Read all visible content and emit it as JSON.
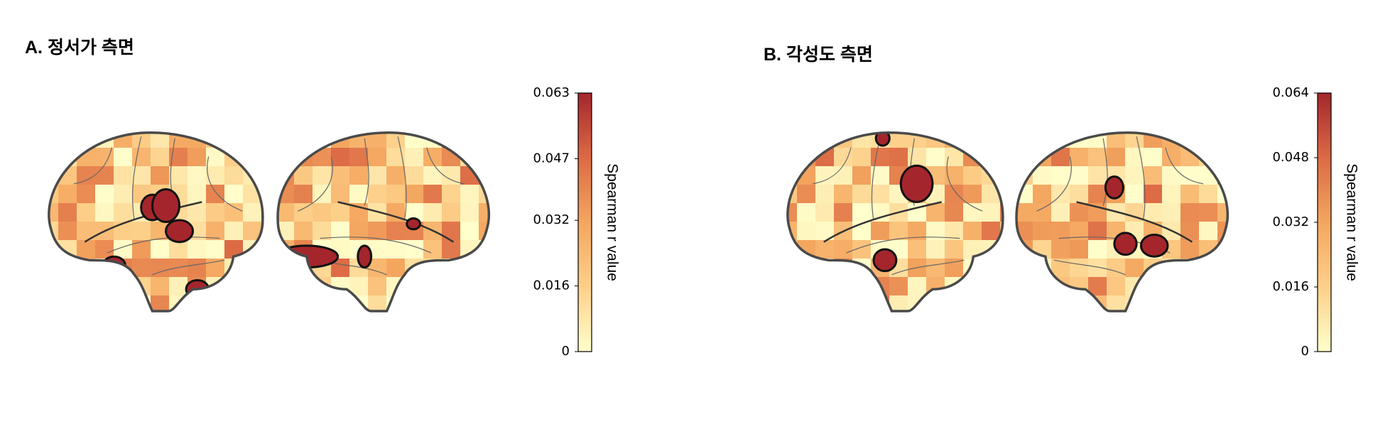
{
  "panels": [
    {
      "title": "A. 정서가 측면",
      "colorbar": {
        "label": "Spearman r value",
        "lim": [
          0,
          0.063
        ],
        "ticks": [
          0,
          0.016,
          0.032,
          0.047,
          0.063
        ],
        "colors": [
          "#ffffcc",
          "#fdd08a",
          "#f4a65f",
          "#dc6a45",
          "#a4262c"
        ]
      }
    },
    {
      "title": "B. 각성도 측면",
      "colorbar": {
        "label": "Spearman r value",
        "lim": [
          0,
          0.064
        ],
        "ticks": [
          0,
          0.016,
          0.032,
          0.048,
          0.064
        ],
        "colors": [
          "#ffffcc",
          "#fdd08a",
          "#f4a65f",
          "#dc6a45",
          "#a4262c"
        ]
      }
    }
  ]
}
